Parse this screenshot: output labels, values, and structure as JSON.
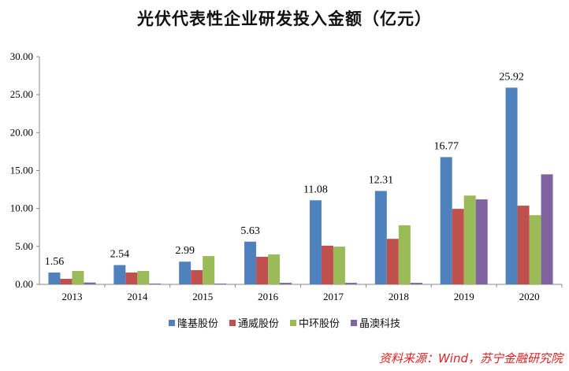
{
  "chart_data": {
    "type": "bar",
    "title": "光伏代表性企业研发投入金额（亿元）",
    "categories": [
      "2013",
      "2014",
      "2015",
      "2016",
      "2017",
      "2018",
      "2019",
      "2020"
    ],
    "series": [
      {
        "name": "隆基股份",
        "color": "#4f81bd",
        "values": [
          1.56,
          2.54,
          2.99,
          5.63,
          11.08,
          12.31,
          16.77,
          25.92
        ]
      },
      {
        "name": "通威股份",
        "color": "#c0504d",
        "values": [
          0.73,
          1.56,
          1.87,
          3.63,
          5.1,
          6.0,
          9.95,
          10.37
        ]
      },
      {
        "name": "中环股份",
        "color": "#9bbb59",
        "values": [
          1.76,
          1.76,
          3.73,
          3.94,
          4.97,
          7.78,
          11.7,
          9.12
        ]
      },
      {
        "name": "晶澳科技",
        "color": "#8064a2",
        "values": [
          0.24,
          0.1,
          0.1,
          0.2,
          0.2,
          0.2,
          11.2,
          14.5
        ]
      }
    ],
    "data_labels": [
      "1.56",
      "2.54",
      "2.99",
      "5.63",
      "11.08",
      "12.31",
      "16.77",
      "25.92"
    ],
    "yticks": [
      "0.00",
      "5.00",
      "10.00",
      "15.00",
      "20.00",
      "25.00",
      "30.00"
    ],
    "ylim": [
      0,
      30
    ],
    "legend": "bottom",
    "grid": false
  },
  "source": "资料来源：Wind，苏宁金融研究院"
}
